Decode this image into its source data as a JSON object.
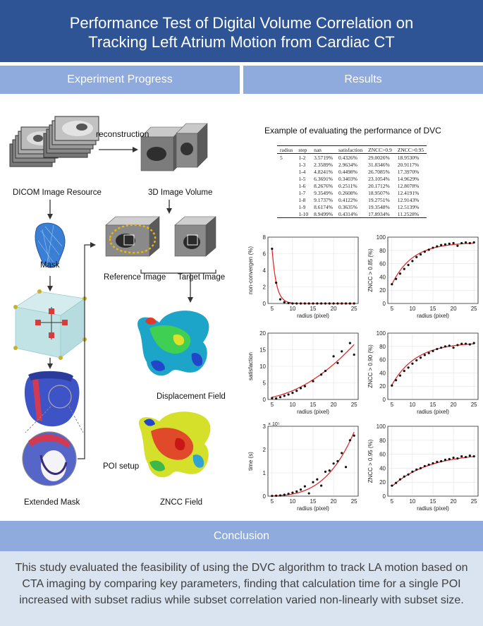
{
  "header": {
    "title_line1": "Performance Test of Digital Volume Correlation on",
    "title_line2": "Tracking Left Atrium Motion from Cardiac CT"
  },
  "sections": {
    "left": "Experiment Progress",
    "right": "Results",
    "conclusion": "Conclusion"
  },
  "flow": {
    "reconstruction": "reconstruction",
    "dicom": "DICOM Image Resource",
    "volume": "3D Image Volume",
    "mask": "Mask",
    "reference": "Reference Image",
    "target": "Target Image",
    "displacement": "Displacement Field",
    "zncc": "ZNCC Field",
    "extended": "Extended Mask",
    "poi": "POI setup"
  },
  "table": {
    "caption": "Example of evaluating the performance of DVC",
    "columns": [
      "radius",
      "step",
      "nan",
      "satisfaction",
      "ZNCC>0.9",
      "ZNCC>0.95"
    ],
    "radius_value": "5",
    "rows": [
      [
        "1-2",
        "3.5719%",
        "0.4326%",
        "29.0026%",
        "18.9530%"
      ],
      [
        "1-3",
        "2.3589%",
        "2.9634%",
        "31.8346%",
        "20.9117%"
      ],
      [
        "1-4",
        "4.8241%",
        "0.4498%",
        "26.7085%",
        "17.3970%"
      ],
      [
        "1-5",
        "6.3691%",
        "0.3403%",
        "23.1054%",
        "14.9629%"
      ],
      [
        "1-6",
        "8.2676%",
        "0.2511%",
        "20.1712%",
        "12.8078%"
      ],
      [
        "1-7",
        "9.3549%",
        "0.2608%",
        "18.9507%",
        "12.4191%"
      ],
      [
        "1-8",
        "9.1737%",
        "0.4122%",
        "19.2751%",
        "12.9143%"
      ],
      [
        "1-9",
        "8.6174%",
        "0.3635%",
        "19.3548%",
        "12.5139%"
      ],
      [
        "1-10",
        "8.9499%",
        "0.4314%",
        "17.8934%",
        "11.2528%"
      ]
    ]
  },
  "chart_data": [
    {
      "type": "scatter",
      "ylabel": "non-convergen (%)",
      "xlabel": "radius (pixel)",
      "xlim": [
        4,
        26
      ],
      "ylim": [
        0,
        8
      ],
      "xticks": [
        5,
        10,
        15,
        20,
        25
      ],
      "yticks": [
        0,
        2,
        4,
        6,
        8
      ],
      "ytick_labels": [
        "0",
        "2",
        "4",
        "6",
        "8"
      ],
      "points": [
        [
          5,
          6.6
        ],
        [
          6,
          2.5
        ],
        [
          7,
          0.5
        ],
        [
          8,
          0.15
        ],
        [
          9,
          0.05
        ],
        [
          10,
          0
        ],
        [
          11,
          0
        ],
        [
          12,
          0
        ],
        [
          13,
          0
        ],
        [
          14,
          0
        ],
        [
          15,
          0
        ],
        [
          16,
          0
        ],
        [
          17,
          0
        ],
        [
          18,
          0
        ],
        [
          19,
          0
        ],
        [
          20,
          0
        ],
        [
          21,
          0
        ],
        [
          22,
          0
        ],
        [
          23,
          0
        ],
        [
          24,
          0
        ],
        [
          25,
          0
        ]
      ],
      "fit": {
        "kind": "exp",
        "a": 6.6,
        "b": -0.95,
        "c": 0
      }
    },
    {
      "type": "scatter",
      "ylabel": "ZNCC > 0.85 (%)",
      "xlabel": "radius (pixel)",
      "xlim": [
        4,
        26
      ],
      "ylim": [
        0,
        100
      ],
      "xticks": [
        5,
        10,
        15,
        20,
        25
      ],
      "yticks": [
        0,
        20,
        40,
        60,
        80,
        100
      ],
      "ytick_labels": [
        "0",
        "20",
        "40",
        "60",
        "80",
        "100"
      ],
      "points": [
        [
          5,
          29
        ],
        [
          6,
          37
        ],
        [
          7,
          45
        ],
        [
          8,
          52
        ],
        [
          9,
          58
        ],
        [
          10,
          64
        ],
        [
          11,
          70
        ],
        [
          12,
          74
        ],
        [
          13,
          78
        ],
        [
          14,
          81
        ],
        [
          15,
          84
        ],
        [
          16,
          86
        ],
        [
          17,
          88
        ],
        [
          18,
          89
        ],
        [
          19,
          90
        ],
        [
          20,
          91
        ],
        [
          21,
          87
        ],
        [
          22,
          91
        ],
        [
          23,
          92
        ],
        [
          24,
          91
        ],
        [
          25,
          92
        ]
      ],
      "fit": {
        "kind": "sat",
        "a": 92,
        "b": 63,
        "k": 0.2
      }
    },
    {
      "type": "scatter",
      "ylabel": "satisfaction",
      "xlabel": "radius (pixel)",
      "xlim": [
        4,
        26
      ],
      "ylim": [
        0,
        20
      ],
      "xticks": [
        5,
        10,
        15,
        20,
        25
      ],
      "yticks": [
        0,
        5,
        10,
        15,
        20
      ],
      "ytick_labels": [
        "0",
        "5",
        "10",
        "15",
        "20"
      ],
      "points": [
        [
          5,
          0.4
        ],
        [
          6,
          0.3
        ],
        [
          7,
          0.7
        ],
        [
          8,
          1.1
        ],
        [
          9,
          1.5
        ],
        [
          10,
          2.0
        ],
        [
          11,
          2.6
        ],
        [
          12,
          3.4
        ],
        [
          13,
          4.0
        ],
        [
          15,
          5.5
        ],
        [
          17,
          7.5
        ],
        [
          18,
          8.6
        ],
        [
          20,
          13.0
        ],
        [
          21,
          11.0
        ],
        [
          22,
          14.5
        ],
        [
          24,
          17.0
        ],
        [
          25,
          13.5
        ]
      ],
      "fit": {
        "kind": "poly",
        "c0": 0.0,
        "c1": 0.0,
        "c2": 0.0265,
        "x0": 0
      }
    },
    {
      "type": "scatter",
      "ylabel": "ZNCC > 0.90 (%)",
      "xlabel": "radius (pixel)",
      "xlim": [
        4,
        26
      ],
      "ylim": [
        0,
        100
      ],
      "xticks": [
        5,
        10,
        15,
        20,
        25
      ],
      "yticks": [
        0,
        20,
        40,
        60,
        80,
        100
      ],
      "ytick_labels": [
        "0",
        "20",
        "40",
        "60",
        "80",
        "100"
      ],
      "points": [
        [
          5,
          21
        ],
        [
          6,
          29
        ],
        [
          7,
          36
        ],
        [
          8,
          43
        ],
        [
          9,
          48
        ],
        [
          10,
          54
        ],
        [
          11,
          59
        ],
        [
          12,
          63
        ],
        [
          13,
          67
        ],
        [
          14,
          70
        ],
        [
          15,
          73
        ],
        [
          16,
          76
        ],
        [
          17,
          78
        ],
        [
          18,
          80
        ],
        [
          19,
          81
        ],
        [
          20,
          78
        ],
        [
          21,
          82
        ],
        [
          22,
          84
        ],
        [
          23,
          84
        ],
        [
          24,
          83
        ],
        [
          25,
          85
        ]
      ],
      "fit": {
        "kind": "sat",
        "a": 86,
        "b": 64,
        "k": 0.17
      }
    },
    {
      "type": "scatter",
      "ylabel": "time (s)",
      "xlabel": "radius (pixel)",
      "xlim": [
        4,
        26
      ],
      "ylim": [
        0,
        3
      ],
      "xticks": [
        5,
        10,
        15,
        20,
        25
      ],
      "yticks": [
        0,
        1,
        2,
        3
      ],
      "ytick_labels": [
        "0",
        "1",
        "2",
        "3"
      ],
      "yexp": "× 10⁵",
      "points": [
        [
          5,
          0.01
        ],
        [
          6,
          0.02
        ],
        [
          7,
          0.03
        ],
        [
          8,
          0.06
        ],
        [
          9,
          0.1
        ],
        [
          10,
          0.15
        ],
        [
          11,
          0.2
        ],
        [
          12,
          0.28
        ],
        [
          13,
          0.42
        ],
        [
          14,
          0.12
        ],
        [
          15,
          0.6
        ],
        [
          16,
          0.72
        ],
        [
          17,
          0.45
        ],
        [
          18,
          1.05
        ],
        [
          19,
          1.1
        ],
        [
          20,
          1.4
        ],
        [
          21,
          1.5
        ],
        [
          22,
          1.85
        ],
        [
          23,
          1.25
        ],
        [
          24,
          2.4
        ],
        [
          25,
          2.6
        ]
      ],
      "fit": {
        "kind": "pow",
        "a": 1.85e-05,
        "p": 3.7,
        "x0": 0
      }
    },
    {
      "type": "scatter",
      "ylabel": "ZNCC > 0.95 (%)",
      "xlabel": "radius (pixel)",
      "xlim": [
        4,
        26
      ],
      "ylim": [
        0,
        100
      ],
      "xticks": [
        5,
        10,
        15,
        20,
        25
      ],
      "yticks": [
        0,
        20,
        40,
        60,
        80,
        100
      ],
      "ytick_labels": [
        "0",
        "20",
        "40",
        "60",
        "80",
        "100"
      ],
      "points": [
        [
          5,
          15
        ],
        [
          6,
          19
        ],
        [
          7,
          24
        ],
        [
          8,
          28
        ],
        [
          9,
          31
        ],
        [
          10,
          35
        ],
        [
          11,
          38
        ],
        [
          12,
          40
        ],
        [
          13,
          43
        ],
        [
          14,
          45
        ],
        [
          15,
          47
        ],
        [
          16,
          49
        ],
        [
          17,
          50
        ],
        [
          18,
          52
        ],
        [
          19,
          53
        ],
        [
          20,
          55
        ],
        [
          21,
          54
        ],
        [
          22,
          57
        ],
        [
          23,
          56
        ],
        [
          24,
          58
        ],
        [
          25,
          57
        ]
      ],
      "fit": {
        "kind": "sat",
        "a": 62,
        "b": 48,
        "k": 0.11
      }
    }
  ],
  "conclusion": {
    "text": "This study evaluated the feasibility of using the DVC algorithm to track LA motion based on CTA imaging by comparing key parameters, finding that calculation time for a single POI increased with subset radius while subset correlation varied non-linearly with subset size."
  },
  "colors": {
    "header": "#2f5496",
    "section": "#8faadc",
    "conclusion_bg": "#dae3f0",
    "fit": "#e02020"
  }
}
